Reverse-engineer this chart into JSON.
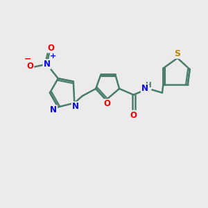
{
  "background_color": "#ebebeb",
  "bond_color": "#4a7c6e",
  "bond_width": 1.8,
  "figsize": [
    3.0,
    3.0
  ],
  "dpi": 100,
  "N_col": "#0000ee",
  "O_col": "#ee0000",
  "S_col": "#b8860b",
  "xlim": [
    0,
    10
  ],
  "ylim": [
    0,
    10
  ]
}
